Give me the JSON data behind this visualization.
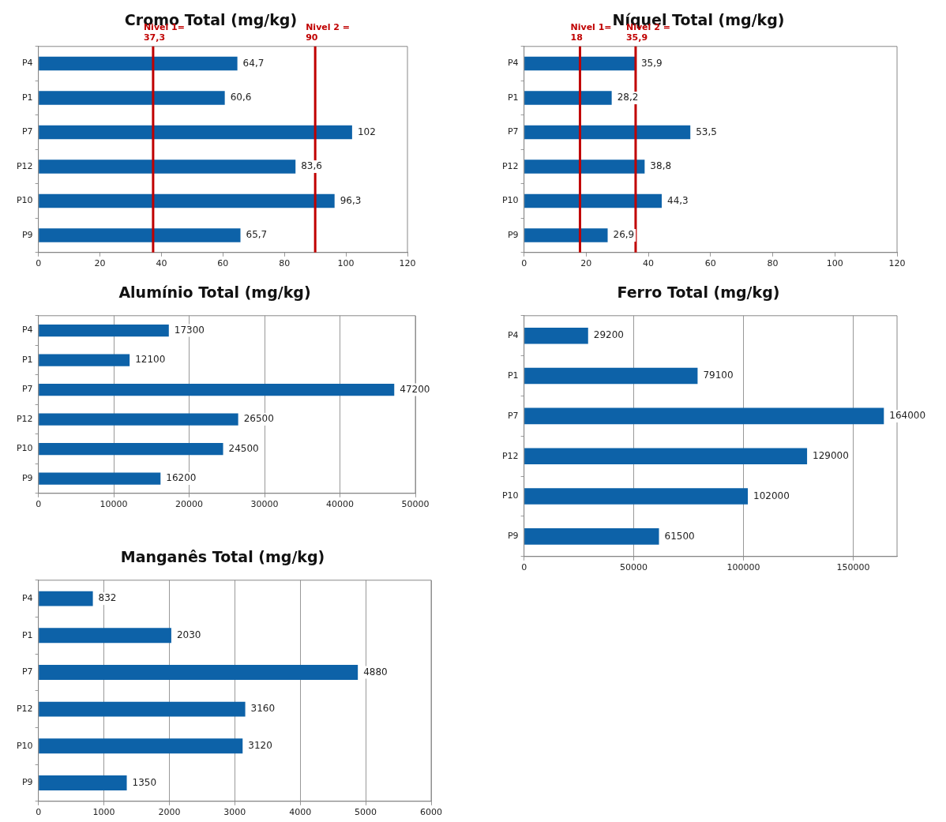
{
  "chart_data": [
    {
      "type": "bar",
      "orientation": "horizontal",
      "title": "Cromo Total (mg/kg)",
      "categories": [
        "P4",
        "P1",
        "P7",
        "P12",
        "P10",
        "P9"
      ],
      "values": [
        64.7,
        60.6,
        102,
        83.6,
        96.3,
        65.7
      ],
      "value_labels": [
        "64,7",
        "60,6",
        "102",
        "83,6",
        "96,3",
        "65,7"
      ],
      "color": "#0d62a8",
      "xlim": [
        0,
        120
      ],
      "xticks": [
        0,
        20,
        40,
        60,
        80,
        100,
        120
      ],
      "grid": false,
      "ref_lines": [
        {
          "axis": "x",
          "value": 37.3,
          "label": "Nivel 1= 37,3",
          "color": "#c00000"
        },
        {
          "axis": "x",
          "value": 90,
          "label": "Nivel 2 = 90",
          "color": "#c00000"
        }
      ]
    },
    {
      "type": "bar",
      "orientation": "horizontal",
      "title": "Níquel Total (mg/kg)",
      "categories": [
        "P4",
        "P1",
        "P7",
        "P12",
        "P10",
        "P9"
      ],
      "values": [
        35.9,
        28.2,
        53.5,
        38.8,
        44.3,
        26.9
      ],
      "value_labels": [
        "35,9",
        "28,2",
        "53,5",
        "38,8",
        "44,3",
        "26,9"
      ],
      "color": "#0d62a8",
      "xlim": [
        0,
        120
      ],
      "xticks": [
        0,
        20,
        40,
        60,
        80,
        100,
        120
      ],
      "grid": false,
      "ref_lines": [
        {
          "axis": "x",
          "value": 18,
          "label": "Nivel 1= 18",
          "color": "#c00000"
        },
        {
          "axis": "x",
          "value": 35.9,
          "label": "Nivel 2 = 35,9",
          "color": "#c00000"
        }
      ]
    },
    {
      "type": "bar",
      "orientation": "horizontal",
      "title": "Alumínio Total (mg/kg)",
      "categories": [
        "P4",
        "P1",
        "P7",
        "P12",
        "P10",
        "P9"
      ],
      "values": [
        17300,
        12100,
        47200,
        26500,
        24500,
        16200
      ],
      "data_labels": true,
      "color": "#0d62a8",
      "xlim": [
        0,
        50000
      ],
      "xticks": [
        0,
        10000,
        20000,
        30000,
        40000,
        50000
      ],
      "grid": "x"
    },
    {
      "type": "bar",
      "orientation": "horizontal",
      "title": "Ferro Total (mg/kg)",
      "categories": [
        "P4",
        "P1",
        "P7",
        "P12",
        "P10",
        "P9"
      ],
      "values": [
        29200,
        79100,
        164000,
        129000,
        102000,
        61500
      ],
      "data_labels": true,
      "color": "#0d62a8",
      "xlim": [
        0,
        170000
      ],
      "xticks": [
        0,
        50000,
        100000,
        150000
      ],
      "grid": "x"
    },
    {
      "type": "bar",
      "orientation": "horizontal",
      "title": "Manganês Total (mg/kg)",
      "categories": [
        "P4",
        "P1",
        "P7",
        "P12",
        "P10",
        "P9"
      ],
      "values": [
        832,
        2030,
        4880,
        3160,
        3120,
        1350
      ],
      "data_labels": true,
      "color": "#0d62a8",
      "xlim": [
        0,
        6000
      ],
      "xticks": [
        0,
        1000,
        2000,
        3000,
        4000,
        5000,
        6000
      ],
      "grid": "x"
    }
  ]
}
